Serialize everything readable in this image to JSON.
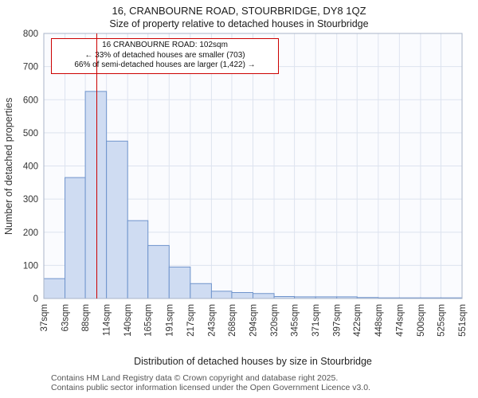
{
  "header": {
    "title": "16, CRANBOURNE ROAD, STOURBRIDGE, DY8 1QZ",
    "subtitle": "Size of property relative to detached houses in Stourbridge"
  },
  "annotation": {
    "line1": "16 CRANBOURNE ROAD: 102sqm",
    "line2": "← 33% of detached houses are smaller (703)",
    "line3": "66% of semi-detached houses are larger (1,422) →"
  },
  "chart_data": {
    "type": "bar",
    "title": "16, CRANBOURNE ROAD, STOURBRIDGE, DY8 1QZ",
    "subtitle": "Size of property relative to detached houses in Stourbridge",
    "xlabel": "Distribution of detached houses by size in Stourbridge",
    "ylabel": "Number of detached properties",
    "bin_edges": [
      37,
      63,
      88,
      114,
      140,
      165,
      191,
      217,
      243,
      268,
      294,
      320,
      345,
      371,
      397,
      422,
      448,
      474,
      500,
      525,
      551
    ],
    "tick_labels": [
      "37sqm",
      "63sqm",
      "88sqm",
      "114sqm",
      "140sqm",
      "165sqm",
      "191sqm",
      "217sqm",
      "243sqm",
      "268sqm",
      "294sqm",
      "320sqm",
      "345sqm",
      "371sqm",
      "397sqm",
      "422sqm",
      "448sqm",
      "474sqm",
      "500sqm",
      "525sqm",
      "551sqm"
    ],
    "values": [
      60,
      365,
      625,
      475,
      235,
      160,
      95,
      45,
      22,
      18,
      15,
      6,
      5,
      5,
      5,
      3,
      2,
      2,
      2,
      2
    ],
    "yticks": [
      0,
      100,
      200,
      300,
      400,
      500,
      600,
      700,
      800
    ],
    "ylim": [
      0,
      800
    ],
    "xlim": [
      37,
      551
    ],
    "marker": {
      "label": "16 CRANBOURNE ROAD",
      "value": 102
    },
    "grid": true,
    "colors": {
      "bar_fill": "#cfdcf2",
      "bar_stroke": "#6f94cc",
      "marker": "#cc0000",
      "grid": "#dde3ef",
      "plot_bg": "#fafbfe",
      "plot_border": "#aab4c8"
    }
  },
  "footer": {
    "line1": "Contains HM Land Registry data © Crown copyright and database right 2025.",
    "line2": "Contains public sector information licensed under the Open Government Licence v3.0."
  }
}
